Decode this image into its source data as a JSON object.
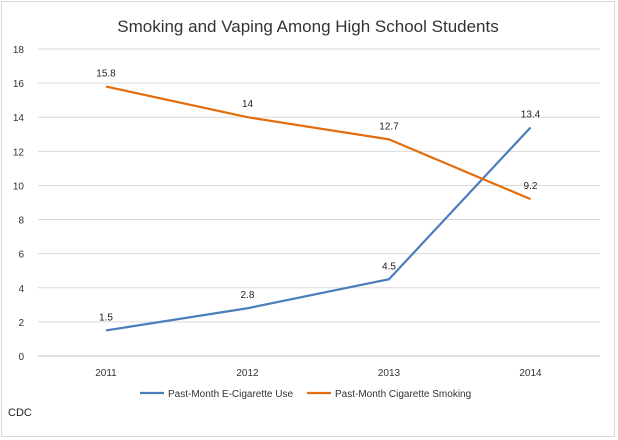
{
  "chart_data": {
    "type": "line",
    "title": "Smoking and Vaping Among High School Students",
    "xlabel": "",
    "ylabel": "",
    "categories": [
      "2011",
      "2012",
      "2013",
      "2014"
    ],
    "ylim": [
      0,
      18
    ],
    "yticks": [
      "0",
      "2",
      "4",
      "6",
      "8",
      "10",
      "12",
      "14",
      "16",
      "18"
    ],
    "grid": true,
    "legend_position": "bottom",
    "series": [
      {
        "name": "Past-Month E-Cigarette Use",
        "values": [
          1.5,
          2.8,
          4.5,
          13.4
        ],
        "labels": [
          "1.5",
          "2.8",
          "4.5",
          "13.4"
        ],
        "color": "#4a7ebb"
      },
      {
        "name": "Past-Month Cigarette Smoking",
        "values": [
          15.8,
          14,
          12.7,
          9.2
        ],
        "labels": [
          "15.8",
          "14",
          "12.7",
          "9.2"
        ],
        "color": "#e46c0a"
      }
    ]
  },
  "footer": {
    "source": "CDC"
  }
}
